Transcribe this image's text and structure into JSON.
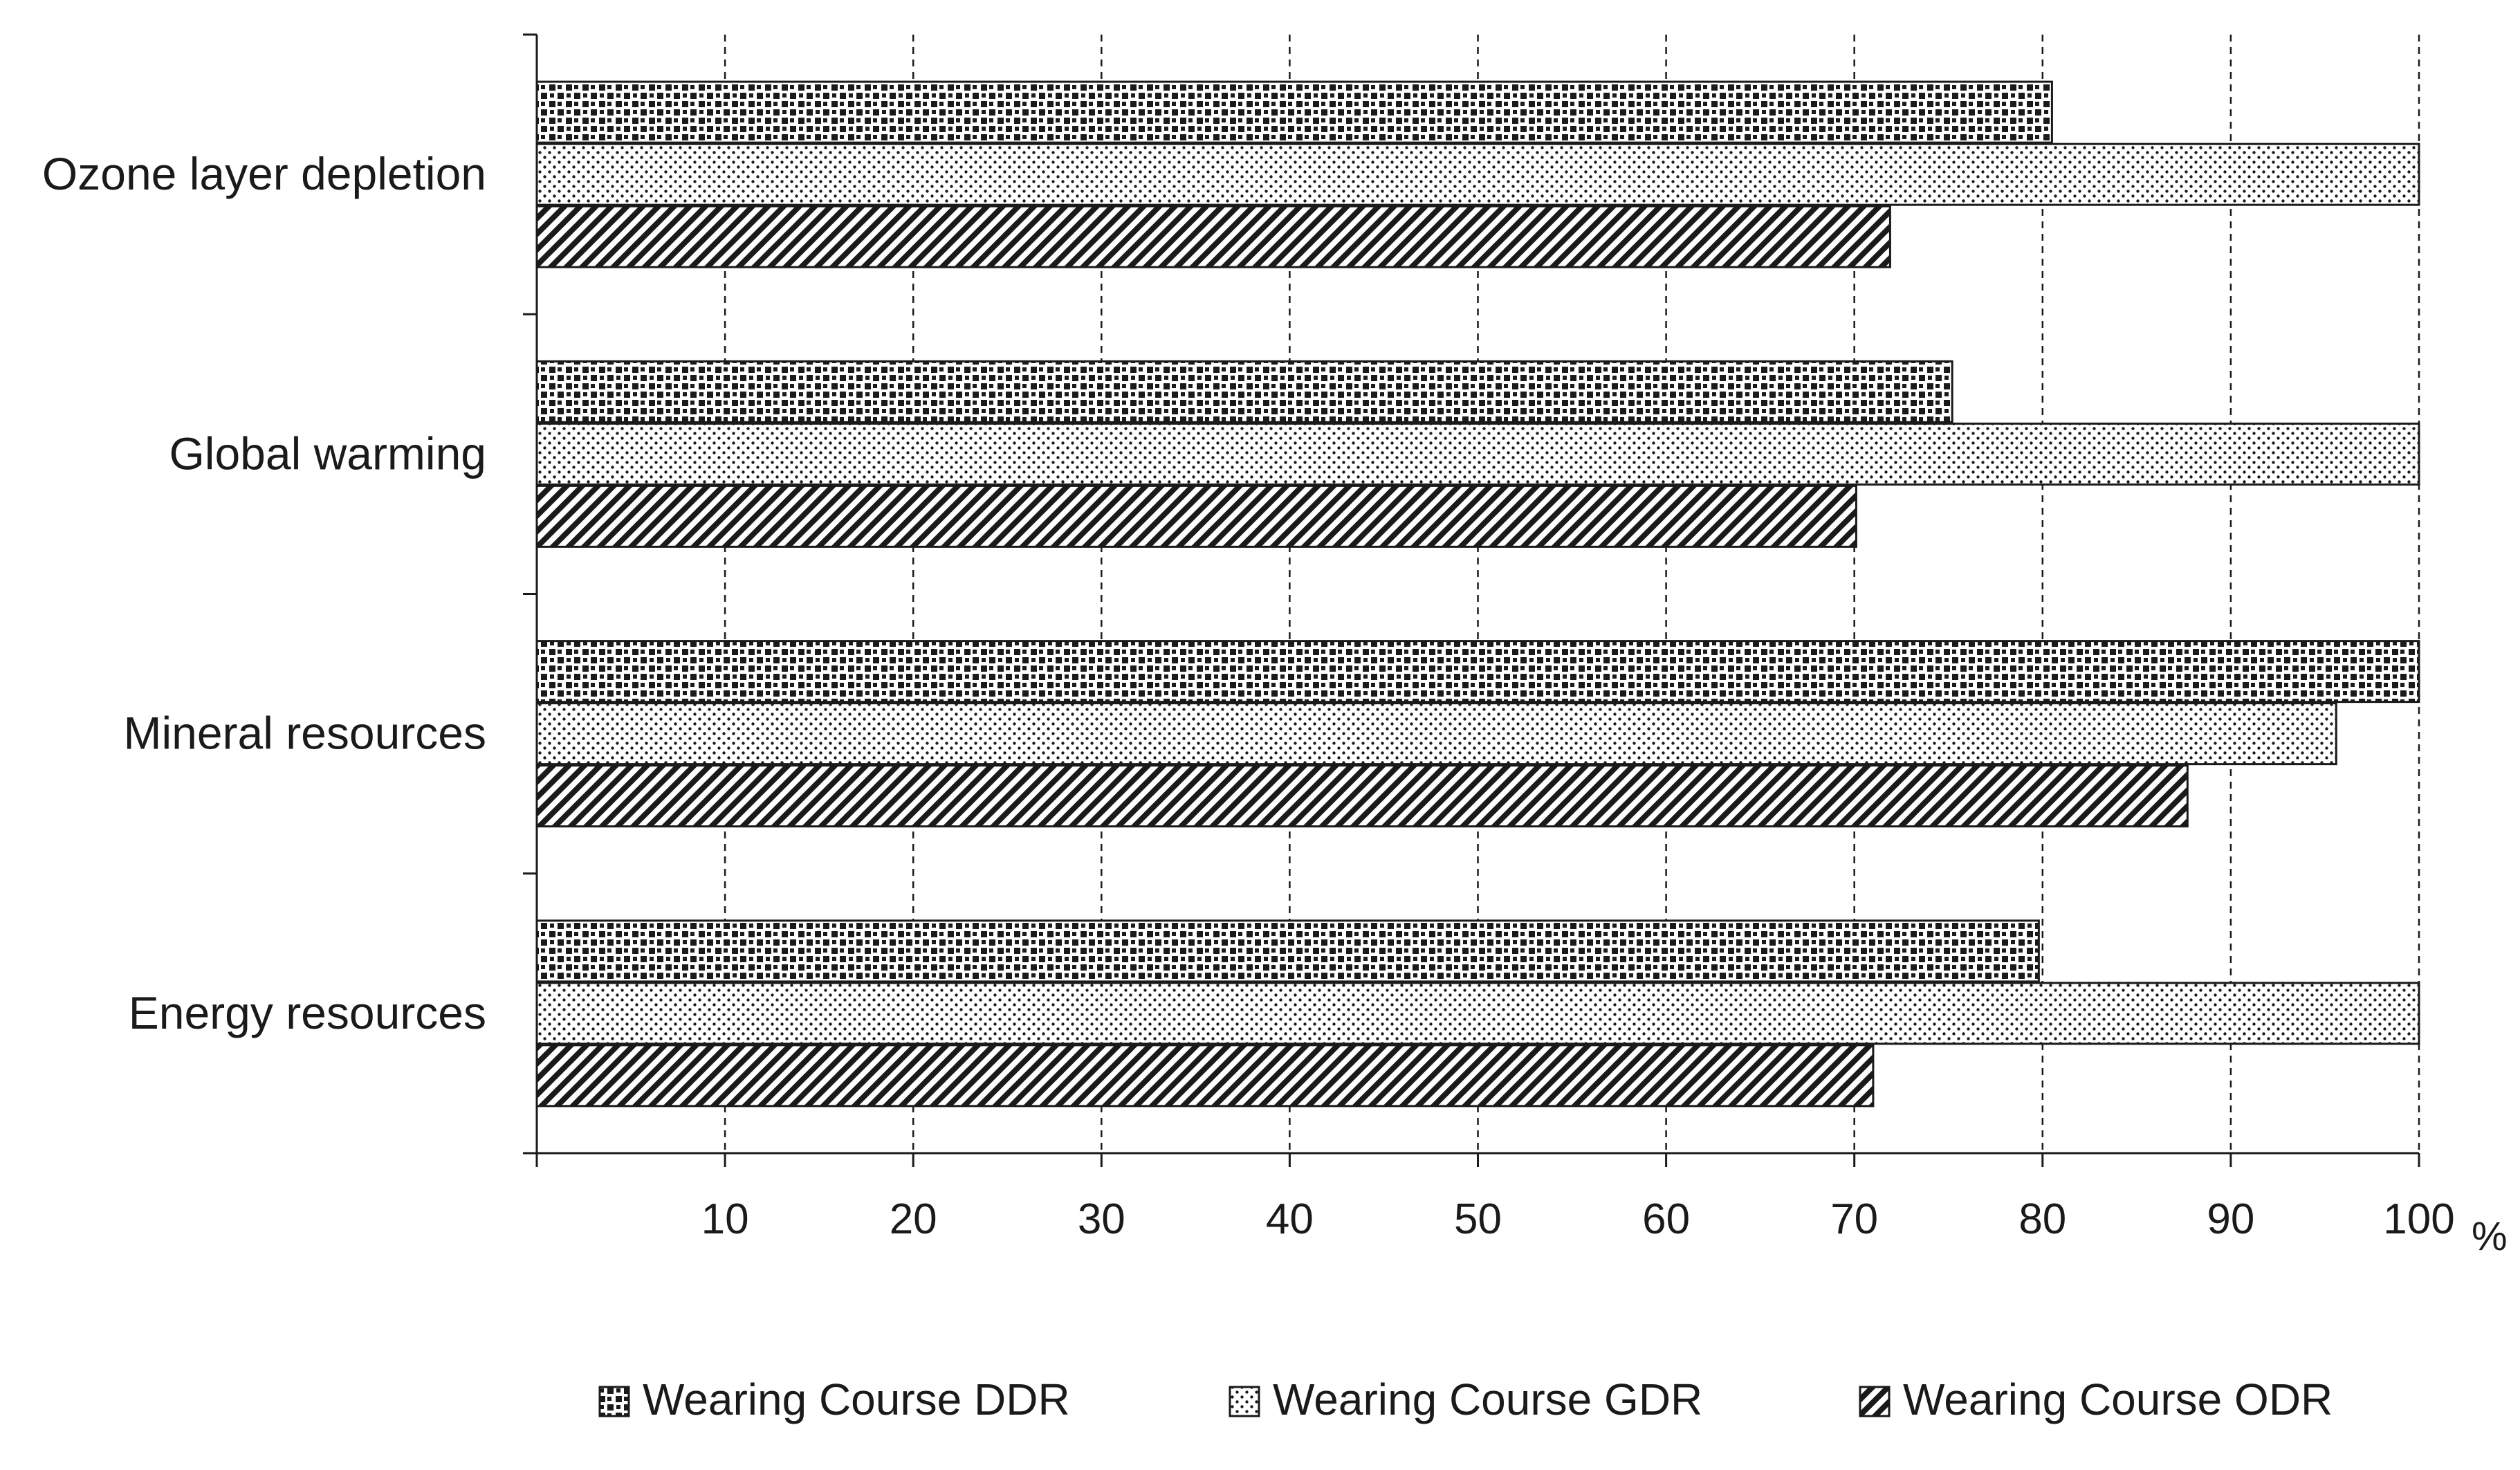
{
  "chart_data": {
    "type": "bar",
    "orientation": "horizontal",
    "categories": [
      "Ozone layer depletion",
      "Global warming",
      "Mineral resources",
      "Energy resources"
    ],
    "series": [
      {
        "name": "Wearing Course DDR",
        "pattern": "checker",
        "values": [
          80.5,
          75.2,
          100,
          79.8
        ]
      },
      {
        "name": "Wearing Course GDR",
        "pattern": "dots",
        "values": [
          100,
          100,
          95.6,
          100
        ]
      },
      {
        "name": "Wearing Course ODR",
        "pattern": "diagonal",
        "values": [
          71.9,
          70.1,
          87.7,
          71.0
        ]
      }
    ],
    "xlim": [
      0,
      100
    ],
    "xticks": [
      10,
      20,
      30,
      40,
      50,
      60,
      70,
      80,
      90,
      100
    ],
    "xtick_labels": [
      "10",
      "20",
      "30",
      "40",
      "50",
      "60",
      "70",
      "80",
      "90",
      "100"
    ],
    "xunit": "%",
    "grid": "vertical dashed",
    "legend_position": "bottom"
  },
  "colors": {
    "ink": "#1a1a1a",
    "background": "#ffffff"
  }
}
